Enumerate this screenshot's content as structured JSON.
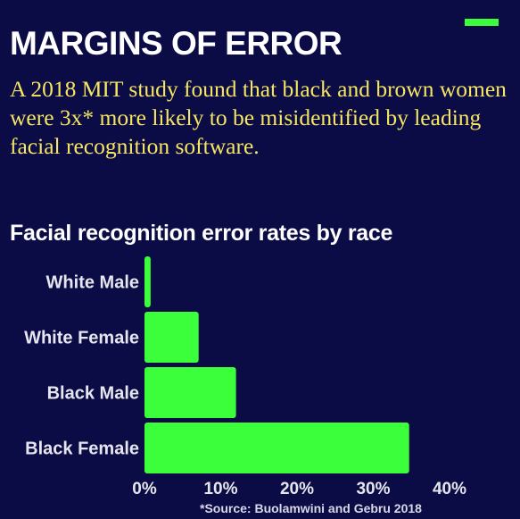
{
  "headline": "MARGINS OF ERROR",
  "dek": "A 2018 MIT study found that black and brown women were 3x* more likely to be misidentified by leading facial recognition software.",
  "source": "*Source: Buolamwini and Gebru 2018",
  "colors": {
    "background": "#0b0b45",
    "bar": "#3cff3c",
    "headline": "#ffffff",
    "dek": "#f5e663",
    "label": "#e6e6ee"
  },
  "chart_data": {
    "type": "bar",
    "orientation": "horizontal",
    "title": "Facial recognition error rates by race",
    "categories": [
      "White Male",
      "White Female",
      "Black Male",
      "Black Female"
    ],
    "values": [
      0.8,
      7.1,
      12.0,
      34.7
    ],
    "xlim": [
      0,
      40
    ],
    "xticks": [
      "0%",
      "10%",
      "20%",
      "30%",
      "40%"
    ],
    "xlabel": "",
    "ylabel": "",
    "grid": false,
    "legend": "none"
  }
}
